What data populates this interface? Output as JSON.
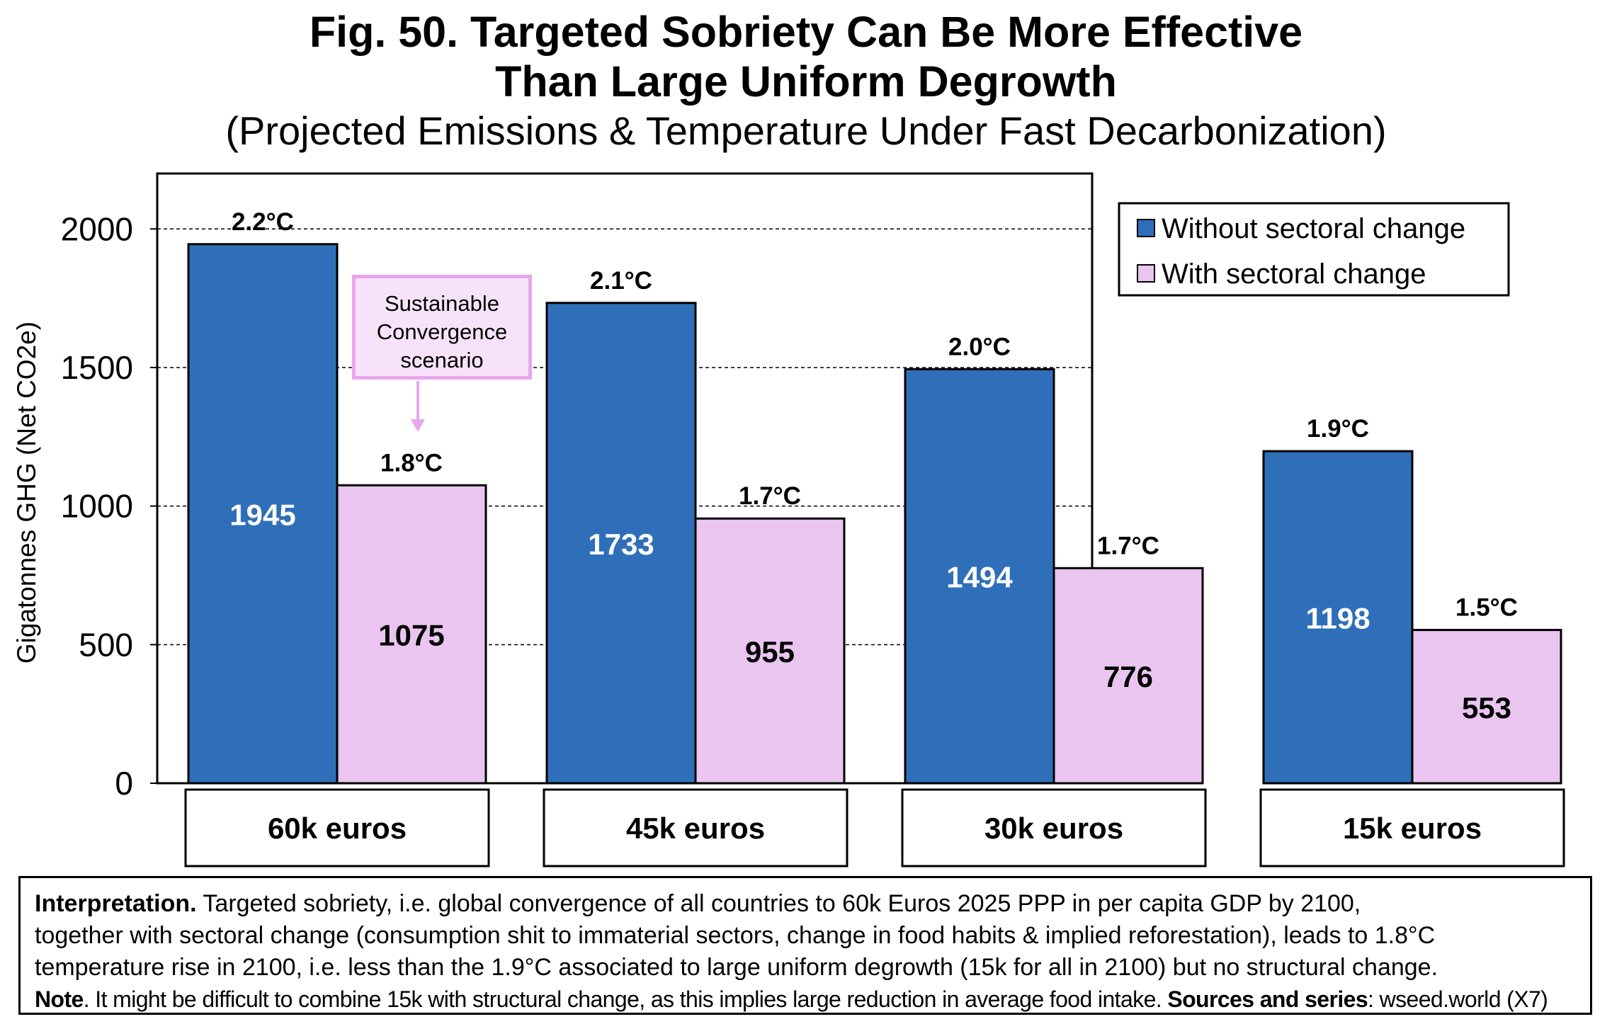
{
  "chart_data": {
    "type": "bar",
    "title": "Fig. 50. Targeted Sobriety Can Be More Effective",
    "title_line2": "Than Large Uniform Degrowth",
    "subtitle": "(Projected Emissions & Temperature Under Fast Decarbonization)",
    "ylabel": "Gigatonnes GHG (Net CO2e)",
    "ylim": [
      0,
      2200
    ],
    "yticks": [
      "0",
      "500",
      "1000",
      "1500",
      "2000"
    ],
    "ytick_values": [
      0,
      500,
      1000,
      1500,
      2000
    ],
    "grid": true,
    "legend_position": "top-right",
    "categories": [
      "60k euros",
      "45k euros",
      "30k euros",
      "15k euros"
    ],
    "series": [
      {
        "name": "Without sectoral change",
        "color": "#2f6fb9",
        "values": [
          1945,
          1733,
          1494,
          1198
        ],
        "value_labels": [
          "1945",
          "1733",
          "1494",
          "1198"
        ],
        "temperature_labels": [
          "2.2°C",
          "2.1°C",
          "2.0°C",
          "1.9°C"
        ]
      },
      {
        "name": "With sectoral change",
        "color": "#eac5f0",
        "values": [
          1075,
          955,
          776,
          553
        ],
        "value_labels": [
          "1075",
          "955",
          "776",
          "553"
        ],
        "temperature_labels": [
          "1.8°C",
          "1.7°C",
          "1.7°C",
          "1.5°C"
        ]
      }
    ],
    "annotation": {
      "lines": [
        "Sustainable",
        "Convergence",
        "scenario"
      ],
      "color": "#e8a6ee"
    }
  },
  "note": {
    "interp_label": "Interpretation.",
    "interp_line1": " Targeted sobriety, i.e. global convergence of all countries to 60k Euros 2025 PPP in per capita GDP by 2100,",
    "interp_line2": "together with sectoral change (consumption shit to immaterial sectors, change in food habits & implied reforestation), leads to 1.8°C",
    "interp_line3": "temperature rise in 2100, i.e. less than the 1.9°C associated to large uniform degrowth (15k for all in 2100) but no structural change.",
    "note_label": "Note",
    "note_text": ". It might be difficult to combine 15k with structural change, as this implies large reduction in average food intake. ",
    "sources_label": "Sources and series",
    "sources_text": ": wseed.world (X7)"
  }
}
